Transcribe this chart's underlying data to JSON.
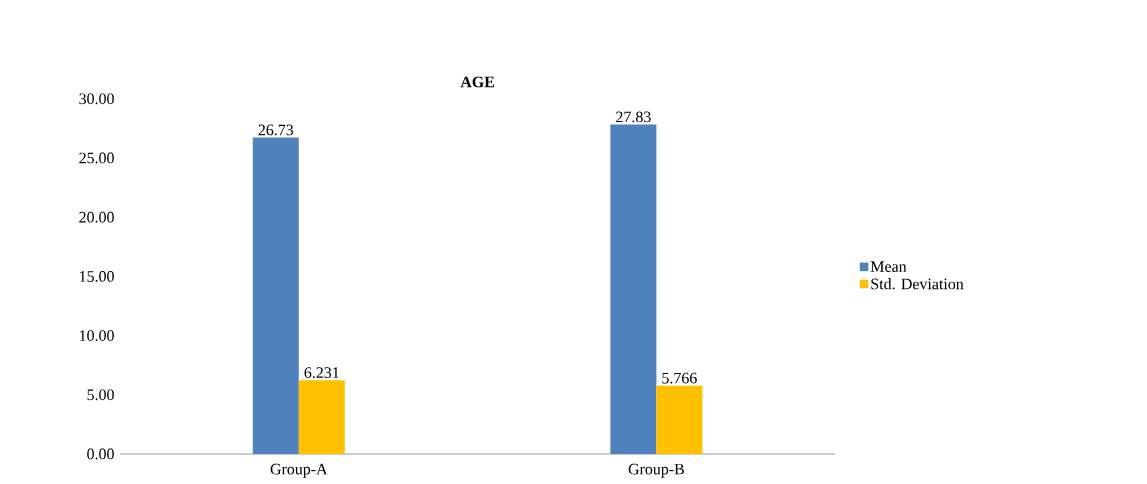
{
  "chart_data": {
    "type": "bar",
    "title": "AGE",
    "categories": [
      "Group-A",
      "Group-B"
    ],
    "series": [
      {
        "name": "Mean",
        "color": "#4f81bd",
        "values": [
          26.73,
          27.83
        ]
      },
      {
        "name": "Std. Deviation",
        "color": "#ffc000",
        "values": [
          6.231,
          5.766
        ]
      }
    ],
    "ylim": [
      0,
      30
    ],
    "yticks": [
      {
        "value": 0,
        "label": "0.00"
      },
      {
        "value": 5,
        "label": "5.00"
      },
      {
        "value": 10,
        "label": "10.00"
      },
      {
        "value": 15,
        "label": "15.00"
      },
      {
        "value": 20,
        "label": "20.00"
      },
      {
        "value": 25,
        "label": "25.00"
      },
      {
        "value": 30,
        "label": "30.00"
      }
    ],
    "data_labels": true,
    "grid": false,
    "legend": "right"
  }
}
